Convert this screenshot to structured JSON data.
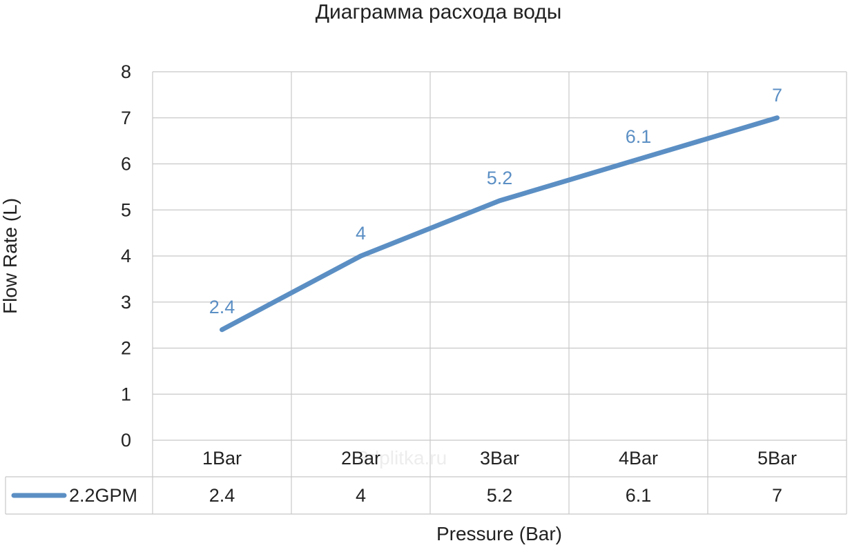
{
  "watermark": "3dplitka.ru",
  "chart_data": {
    "type": "line",
    "title": "Диаграмма расхода воды",
    "xlabel": "Pressure (Bar)",
    "ylabel": "Flow Rate (L)",
    "categories": [
      "1Bar",
      "2Bar",
      "3Bar",
      "4Bar",
      "5Bar"
    ],
    "series": [
      {
        "name": "2.2GPM",
        "values": [
          2.4,
          4,
          5.2,
          6.1,
          7
        ],
        "value_labels": [
          "2.4",
          "4",
          "5.2",
          "6.1",
          "7"
        ],
        "color": "#5b8fc4"
      }
    ],
    "ylim": [
      0,
      8
    ],
    "yticks": [
      "0",
      "1",
      "2",
      "3",
      "4",
      "5",
      "6",
      "7",
      "8"
    ],
    "grid": true,
    "data_table": true,
    "legend": "in data table"
  }
}
